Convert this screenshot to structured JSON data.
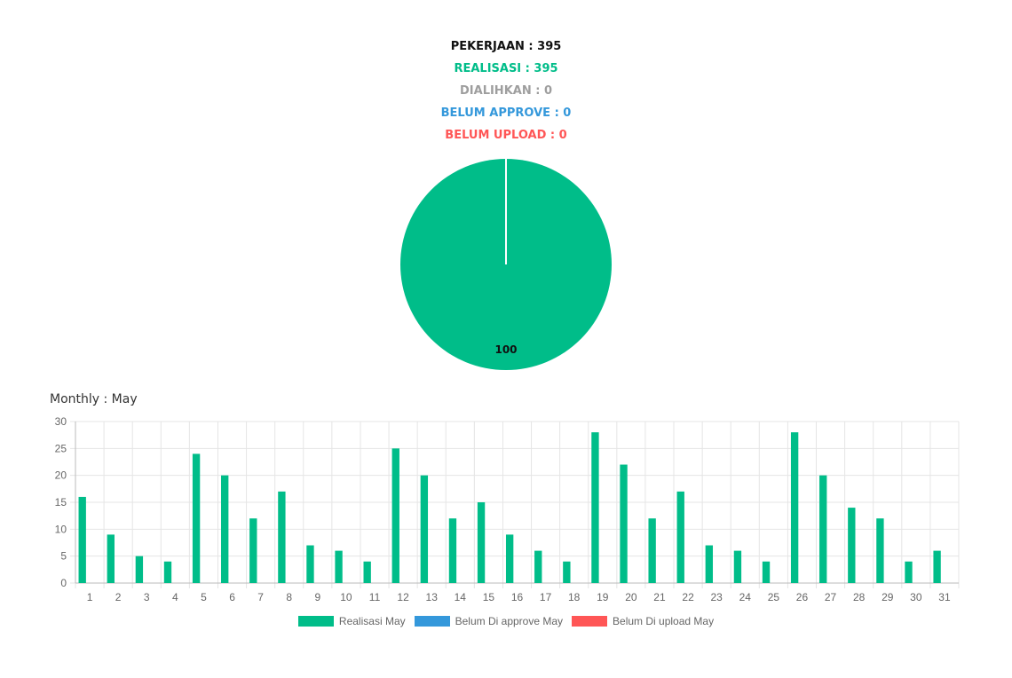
{
  "summary": {
    "pekerjaan": "PEKERJAAN : 395",
    "realisasi": "REALISASI : 395",
    "dialihkan": "DIALIHKAN : 0",
    "belum_approve": "BELUM APPROVE : 0",
    "belum_upload": "BELUM UPLOAD : 0"
  },
  "colors": {
    "realisasi": "#00bd89",
    "dialihkan": "#9e9e9e",
    "belum_approve": "#3498db",
    "belum_upload": "#ff5656",
    "pekerjaan": "#111111"
  },
  "monthly": {
    "title": "Monthly : May"
  },
  "chart_data": [
    {
      "type": "pie",
      "slices": [
        {
          "label": "Realisasi",
          "value": 100,
          "color": "#00bd89"
        }
      ],
      "data_labels": [
        "100"
      ]
    },
    {
      "type": "bar",
      "categories": [
        "1",
        "2",
        "3",
        "4",
        "5",
        "6",
        "7",
        "8",
        "9",
        "10",
        "11",
        "12",
        "13",
        "14",
        "15",
        "16",
        "17",
        "18",
        "19",
        "20",
        "21",
        "22",
        "23",
        "24",
        "25",
        "26",
        "27",
        "28",
        "29",
        "30",
        "31"
      ],
      "series": [
        {
          "name": "Realisasi May",
          "color": "#00bd89",
          "values": [
            16,
            9,
            5,
            4,
            24,
            20,
            12,
            17,
            7,
            6,
            4,
            25,
            20,
            12,
            15,
            9,
            6,
            4,
            28,
            22,
            12,
            17,
            7,
            6,
            4,
            28,
            20,
            14,
            12,
            4,
            6
          ]
        },
        {
          "name": "Belum Di approve May",
          "color": "#3498db",
          "values": [
            0,
            0,
            0,
            0,
            0,
            0,
            0,
            0,
            0,
            0,
            0,
            0,
            0,
            0,
            0,
            0,
            0,
            0,
            0,
            0,
            0,
            0,
            0,
            0,
            0,
            0,
            0,
            0,
            0,
            0,
            0
          ]
        },
        {
          "name": "Belum Di upload May",
          "color": "#ff5656",
          "values": [
            0,
            0,
            0,
            0,
            0,
            0,
            0,
            0,
            0,
            0,
            0,
            0,
            0,
            0,
            0,
            0,
            0,
            0,
            0,
            0,
            0,
            0,
            0,
            0,
            0,
            0,
            0,
            0,
            0,
            0,
            0
          ]
        }
      ],
      "ylim": [
        0,
        30
      ],
      "yticks": [
        "0",
        "5",
        "10",
        "15",
        "20",
        "25",
        "30"
      ],
      "grid": true,
      "legend": "bottom"
    }
  ]
}
